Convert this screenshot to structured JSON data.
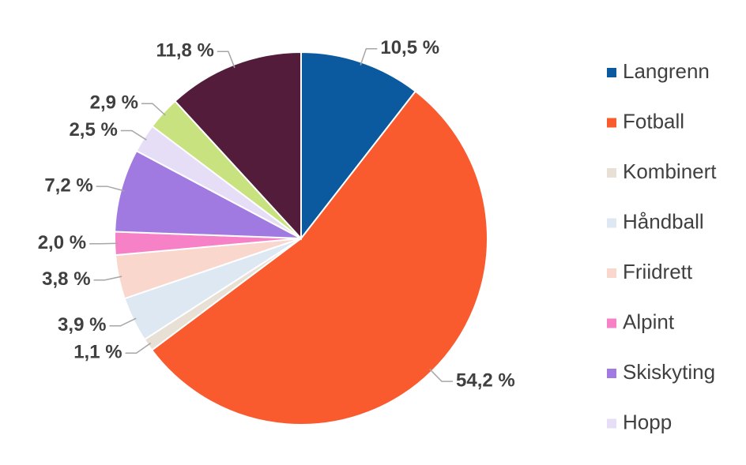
{
  "chart_data": {
    "type": "pie",
    "categories": [
      "Langrenn",
      "Fotball",
      "Kombinert",
      "Håndball",
      "Friidrett",
      "Alpint",
      "Skiskyting",
      "Hopp",
      null,
      null
    ],
    "values": [
      10.5,
      54.2,
      1.1,
      3.9,
      3.8,
      2.0,
      7.2,
      2.5,
      2.9,
      11.8
    ],
    "value_labels": [
      "10,5 %",
      "54,2 %",
      "1,1 %",
      "3,9 %",
      "3,8 %",
      "2,0 %",
      "7,2 %",
      "2,5 %",
      "2,9 %",
      "11,8 %"
    ],
    "colors": [
      "#0b5aa0",
      "#f95b2e",
      "#e8e0d4",
      "#dde8f3",
      "#f9d7cc",
      "#f681c6",
      "#a07ae0",
      "#e6ddf7",
      "#c8e27f",
      "#521c3a"
    ],
    "legend": "right"
  }
}
